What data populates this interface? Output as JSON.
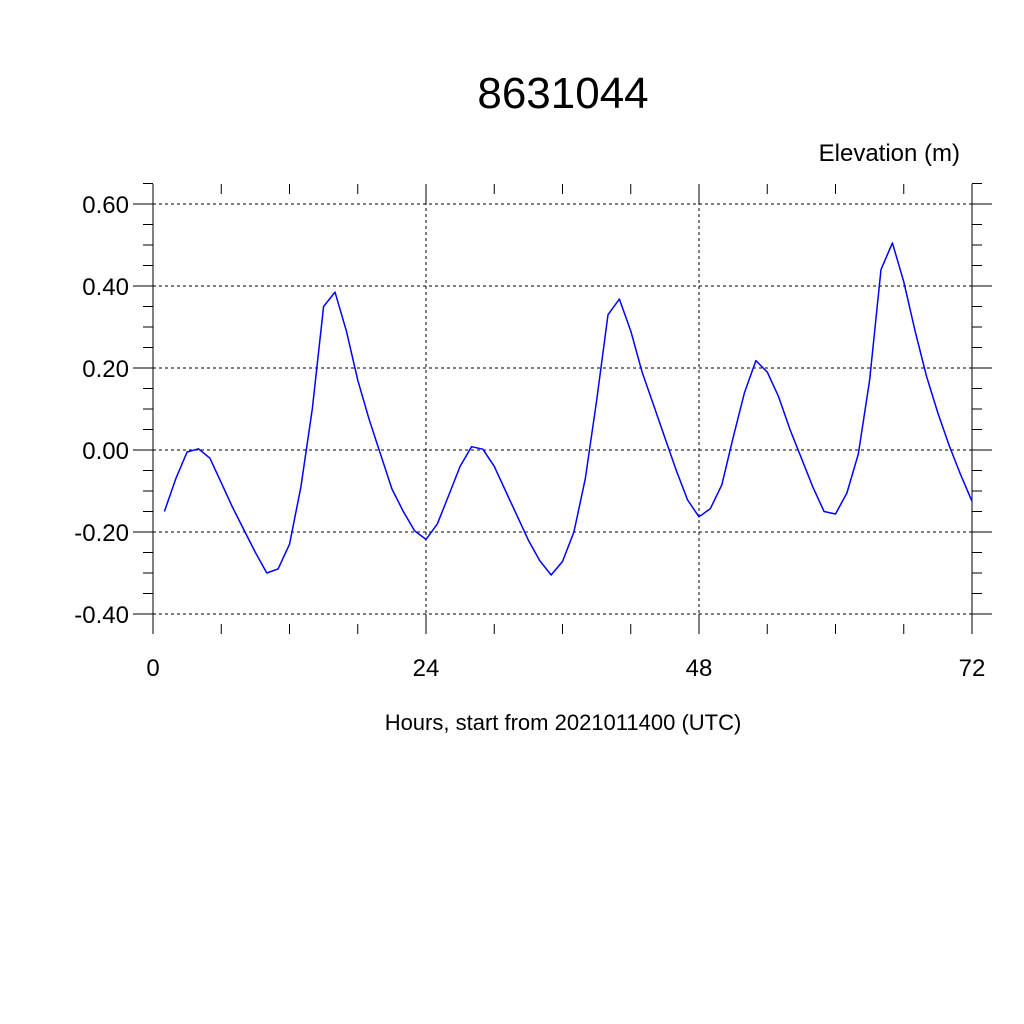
{
  "chart_data": {
    "type": "line",
    "title": "8631044",
    "ylabel": "Elevation (m)",
    "xlabel": "Hours, start from 2021011400 (UTC)",
    "xlim": [
      0,
      72
    ],
    "ylim": [
      -0.4,
      0.65
    ],
    "x_ticks": [
      0,
      24,
      48,
      72
    ],
    "x_tick_labels": [
      "0",
      "24",
      "48",
      "72"
    ],
    "y_ticks": [
      -0.4,
      -0.2,
      0.0,
      0.2,
      0.4,
      0.6
    ],
    "y_tick_labels": [
      "-0.40",
      "-0.20",
      "0.00",
      "0.20",
      "0.40",
      "0.60"
    ],
    "grid": true,
    "line_color": "#0000ff",
    "series": [
      {
        "x": [
          1,
          2,
          3,
          4,
          5,
          6,
          7,
          8,
          9,
          10,
          11,
          12,
          13,
          14,
          15,
          16,
          17,
          18,
          19,
          20,
          21,
          22,
          23,
          24,
          25,
          26,
          27,
          28,
          29,
          30,
          31,
          32,
          33,
          34,
          35,
          36,
          37,
          38,
          39,
          40,
          41,
          42,
          43,
          44,
          45,
          46,
          47,
          48,
          49,
          50,
          51,
          52,
          53,
          54,
          55,
          56,
          57,
          58,
          59,
          60,
          61,
          62,
          63,
          64,
          65,
          66,
          67,
          68,
          69,
          70,
          71,
          72
        ],
        "values": [
          -0.15,
          -0.07,
          -0.005,
          0.003,
          -0.02,
          -0.08,
          -0.14,
          -0.195,
          -0.25,
          -0.3,
          -0.29,
          -0.23,
          -0.09,
          0.1,
          0.35,
          0.385,
          0.29,
          0.17,
          0.075,
          -0.01,
          -0.095,
          -0.15,
          -0.197,
          -0.218,
          -0.18,
          -0.11,
          -0.04,
          0.008,
          0.002,
          -0.04,
          -0.1,
          -0.16,
          -0.22,
          -0.27,
          -0.305,
          -0.272,
          -0.2,
          -0.07,
          0.12,
          0.33,
          0.368,
          0.29,
          0.19,
          0.11,
          0.03,
          -0.05,
          -0.122,
          -0.163,
          -0.143,
          -0.085,
          0.03,
          0.14,
          0.218,
          0.19,
          0.13,
          0.05,
          -0.02,
          -0.09,
          -0.15,
          -0.156,
          -0.105,
          -0.01,
          0.17,
          0.44,
          0.505,
          0.41,
          0.29,
          0.18,
          0.09,
          0.01,
          -0.06,
          -0.125
        ]
      }
    ]
  }
}
